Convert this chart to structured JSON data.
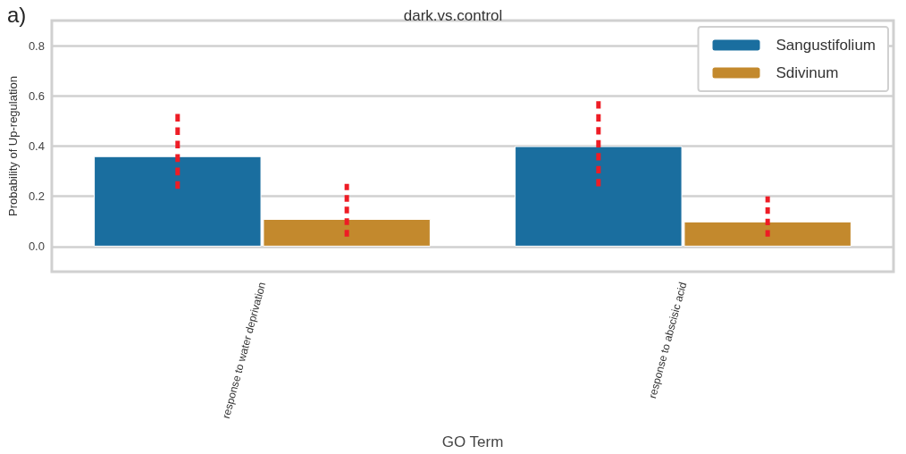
{
  "chart_data": {
    "type": "bar",
    "title": "dark.vs.control",
    "xlabel": "GO Term",
    "ylabel": "Probability of Up-regulation",
    "annotations": [
      "a)"
    ],
    "categories": [
      "response to water deprivation",
      "response to abscisic acid"
    ],
    "series": [
      {
        "name": "Sangustifolium",
        "color": "#1a6e9f",
        "values": [
          0.36,
          0.4
        ],
        "errors": [
          [
            0.23,
            0.53
          ],
          [
            0.24,
            0.58
          ]
        ]
      },
      {
        "name": "Sdivinum",
        "color": "#c3892d",
        "values": [
          0.11,
          0.1
        ],
        "errors": [
          [
            0.04,
            0.25
          ],
          [
            0.04,
            0.2
          ]
        ]
      }
    ],
    "ylim": [
      -0.1,
      0.9
    ],
    "yticks": [
      {
        "value": 0,
        "label": "0.0"
      },
      0.2,
      0.4,
      0.6,
      0.8
    ],
    "grid": "y",
    "legend": "top right"
  }
}
